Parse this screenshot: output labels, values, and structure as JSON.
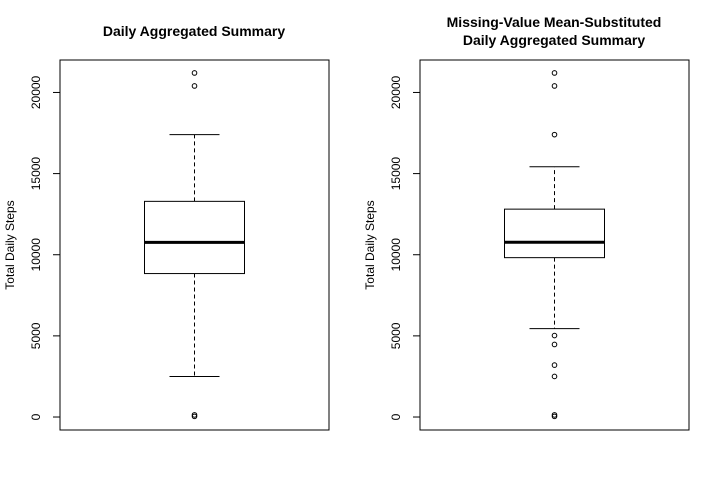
{
  "chart_data": [
    {
      "type": "boxplot",
      "title_lines": [
        "Daily Aggregated Summary"
      ],
      "ylabel": "Total Daily Steps",
      "xlabel": "",
      "ylim": [
        -800,
        22000
      ],
      "yticks": [
        0,
        5000,
        10000,
        15000,
        20000
      ],
      "grid": false,
      "box": {
        "whisker_low": 2500,
        "q1": 8840,
        "median": 10765,
        "q3": 13290,
        "whisker_high": 17400,
        "outliers": [
          40,
          130,
          20400,
          21200
        ]
      }
    },
    {
      "type": "boxplot",
      "title_lines": [
        "Missing-Value Mean-Substituted",
        "Daily Aggregated Summary"
      ],
      "ylabel": "Total Daily Steps",
      "xlabel": "",
      "ylim": [
        -800,
        22000
      ],
      "yticks": [
        0,
        5000,
        10000,
        15000,
        20000
      ],
      "grid": false,
      "box": {
        "whisker_low": 5450,
        "q1": 9820,
        "median": 10766,
        "q3": 12810,
        "whisker_high": 15420,
        "outliers": [
          40,
          130,
          2500,
          3200,
          4470,
          5020,
          17400,
          20400,
          21200
        ]
      }
    }
  ]
}
